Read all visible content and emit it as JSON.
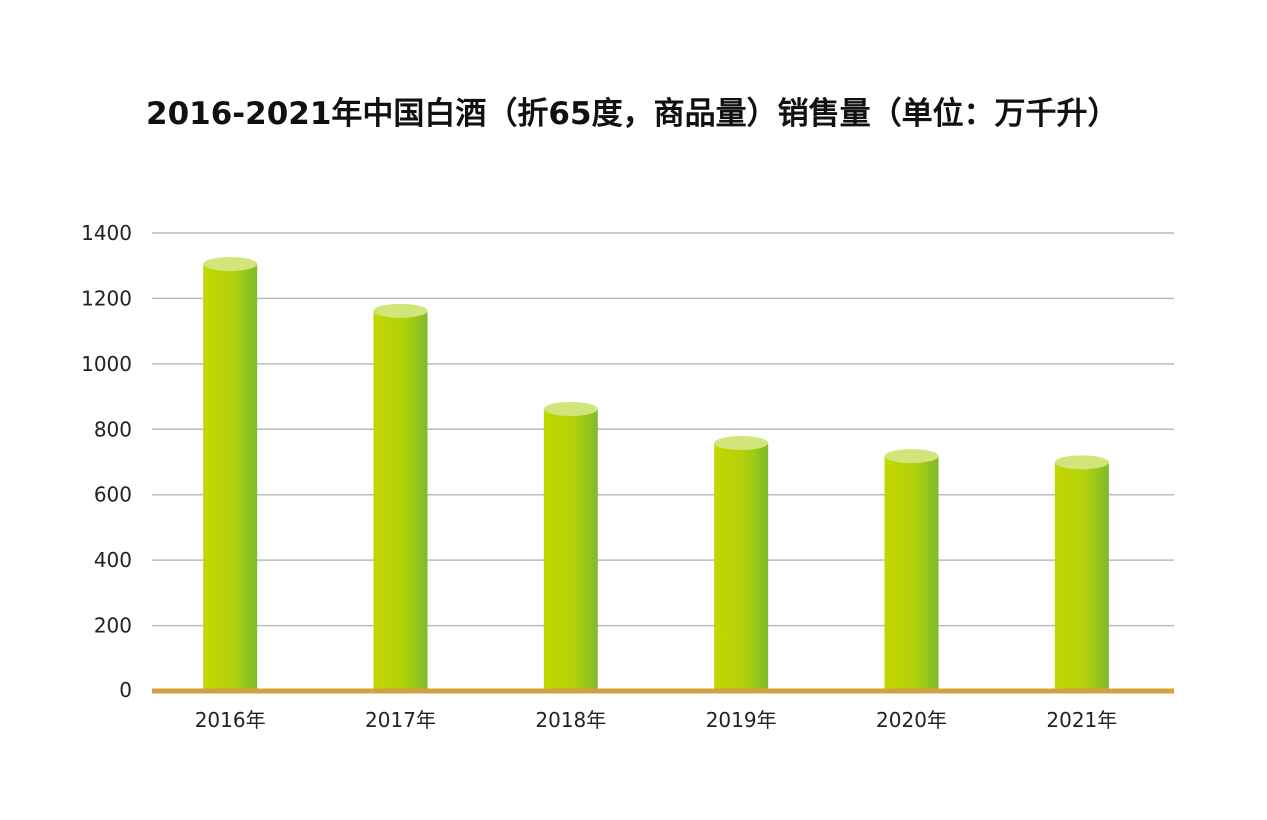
{
  "title": "2016-2021年中国白酒（折65度，商品量）销售量（单位：万千升）",
  "colors": {
    "bar_left": "#c3d600",
    "bar_right": "#7dbb2a",
    "bar_top": "#d2e57a",
    "baseline": "#d4a040",
    "grid": "#bbbbbb"
  },
  "chart_data": {
    "type": "bar",
    "title": "2016-2021年中国白酒（折65度，商品量）销售量（单位：万千升）",
    "categories": [
      "2016年",
      "2017年",
      "2018年",
      "2019年",
      "2020年",
      "2021年"
    ],
    "values": [
      1305,
      1162,
      862,
      758,
      718,
      699
    ],
    "ylim": [
      0,
      1400
    ],
    "yticks": [
      0,
      200,
      400,
      600,
      800,
      1000,
      1200,
      1400
    ],
    "ytick_labels": [
      "0",
      "200",
      "400",
      "600",
      "800",
      "1000",
      "1200",
      "1400"
    ],
    "xlabel": "",
    "ylabel": "",
    "grid": true,
    "legend": false
  }
}
